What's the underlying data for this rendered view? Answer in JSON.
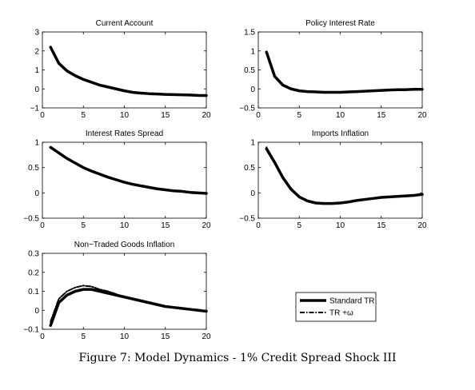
{
  "caption": "Figure 7: Model Dynamics - 1% Credit Spread Shock III",
  "legend": {
    "entries": [
      {
        "label": "Standard TR",
        "style": "solid"
      },
      {
        "label": "TR +ω",
        "style": "dashdot"
      }
    ]
  },
  "chart_data": [
    {
      "type": "line",
      "title": "Current Account",
      "xlim": [
        0,
        20
      ],
      "ylim": [
        -1,
        3
      ],
      "xticks": [
        0,
        5,
        10,
        15,
        20
      ],
      "yticks": [
        -1,
        0,
        1,
        2,
        3
      ],
      "xtick_labels": [
        "0",
        "5",
        "10",
        "15",
        "20"
      ],
      "ytick_labels": [
        "−1",
        "0",
        "1",
        "2",
        "3"
      ],
      "series": [
        {
          "style": "solid",
          "x": [
            1,
            2,
            3,
            4,
            5,
            6,
            7,
            8,
            9,
            10,
            11,
            12,
            13,
            14,
            15,
            16,
            17,
            18,
            19,
            20
          ],
          "y": [
            2.2,
            1.35,
            0.95,
            0.7,
            0.5,
            0.35,
            0.2,
            0.1,
            0.0,
            -0.1,
            -0.18,
            -0.22,
            -0.25,
            -0.27,
            -0.29,
            -0.3,
            -0.31,
            -0.32,
            -0.34,
            -0.35
          ]
        },
        {
          "style": "dashdot",
          "x": [
            1,
            2,
            3,
            4,
            5,
            6,
            7,
            8,
            9,
            10,
            11,
            12,
            13,
            14,
            15,
            16,
            17,
            18,
            19,
            20
          ],
          "y": [
            2.2,
            1.35,
            0.95,
            0.7,
            0.5,
            0.35,
            0.2,
            0.1,
            0.0,
            -0.1,
            -0.18,
            -0.22,
            -0.25,
            -0.27,
            -0.29,
            -0.3,
            -0.31,
            -0.32,
            -0.34,
            -0.35
          ]
        }
      ]
    },
    {
      "type": "line",
      "title": "Policy Interest Rate",
      "xlim": [
        0,
        20
      ],
      "ylim": [
        -0.5,
        1.5
      ],
      "xticks": [
        0,
        5,
        10,
        15,
        20
      ],
      "yticks": [
        -0.5,
        0,
        0.5,
        1,
        1.5
      ],
      "xtick_labels": [
        "0",
        "5",
        "10",
        "15",
        "20"
      ],
      "ytick_labels": [
        "−0.5",
        "0",
        "0.5",
        "1",
        "1.5"
      ],
      "series": [
        {
          "style": "solid",
          "x": [
            1,
            2,
            3,
            4,
            5,
            6,
            7,
            8,
            9,
            10,
            11,
            12,
            13,
            14,
            15,
            16,
            17,
            18,
            19,
            20
          ],
          "y": [
            0.97,
            0.33,
            0.1,
            0.0,
            -0.05,
            -0.07,
            -0.08,
            -0.09,
            -0.09,
            -0.09,
            -0.08,
            -0.07,
            -0.06,
            -0.05,
            -0.04,
            -0.03,
            -0.02,
            -0.02,
            -0.01,
            -0.01
          ]
        },
        {
          "style": "dashdot",
          "x": [
            1,
            2,
            3,
            4,
            5,
            6,
            7,
            8,
            9,
            10,
            11,
            12,
            13,
            14,
            15,
            16,
            17,
            18,
            19,
            20
          ],
          "y": [
            0.97,
            0.33,
            0.1,
            0.0,
            -0.05,
            -0.07,
            -0.08,
            -0.09,
            -0.09,
            -0.09,
            -0.08,
            -0.07,
            -0.06,
            -0.05,
            -0.04,
            -0.03,
            -0.02,
            -0.02,
            -0.01,
            -0.01
          ]
        }
      ]
    },
    {
      "type": "line",
      "title": "Interest Rates Spread",
      "xlim": [
        0,
        20
      ],
      "ylim": [
        -0.5,
        1
      ],
      "xticks": [
        0,
        5,
        10,
        15,
        20
      ],
      "yticks": [
        -0.5,
        0,
        0.5,
        1
      ],
      "xtick_labels": [
        "0",
        "5",
        "10",
        "15",
        "20"
      ],
      "ytick_labels": [
        "−0.5",
        "0",
        "0.5",
        "1"
      ],
      "series": [
        {
          "style": "solid",
          "x": [
            1,
            2,
            3,
            4,
            5,
            6,
            7,
            8,
            9,
            10,
            11,
            12,
            13,
            14,
            15,
            16,
            17,
            18,
            19,
            20
          ],
          "y": [
            0.9,
            0.79,
            0.68,
            0.59,
            0.5,
            0.43,
            0.37,
            0.31,
            0.26,
            0.21,
            0.17,
            0.14,
            0.11,
            0.08,
            0.06,
            0.04,
            0.03,
            0.01,
            0.0,
            -0.01
          ]
        },
        {
          "style": "dashdot",
          "x": [
            1,
            2,
            3,
            4,
            5,
            6,
            7,
            8,
            9,
            10,
            11,
            12,
            13,
            14,
            15,
            16,
            17,
            18,
            19,
            20
          ],
          "y": [
            0.9,
            0.79,
            0.68,
            0.59,
            0.5,
            0.43,
            0.37,
            0.31,
            0.26,
            0.21,
            0.17,
            0.14,
            0.11,
            0.08,
            0.06,
            0.04,
            0.03,
            0.01,
            0.0,
            -0.01
          ]
        }
      ]
    },
    {
      "type": "line",
      "title": "Imports Inflation",
      "xlim": [
        0,
        20
      ],
      "ylim": [
        -0.5,
        1
      ],
      "xticks": [
        0,
        5,
        10,
        15,
        20
      ],
      "yticks": [
        -0.5,
        0,
        0.5,
        1
      ],
      "xtick_labels": [
        "0",
        "5",
        "10",
        "15",
        "20"
      ],
      "ytick_labels": [
        "−0.5",
        "0",
        "0.5",
        "1"
      ],
      "series": [
        {
          "style": "solid",
          "x": [
            1,
            2,
            3,
            4,
            5,
            6,
            7,
            8,
            9,
            10,
            11,
            12,
            13,
            14,
            15,
            16,
            17,
            18,
            19,
            20
          ],
          "y": [
            0.87,
            0.6,
            0.3,
            0.07,
            -0.08,
            -0.16,
            -0.2,
            -0.21,
            -0.21,
            -0.2,
            -0.18,
            -0.15,
            -0.13,
            -0.11,
            -0.09,
            -0.08,
            -0.07,
            -0.06,
            -0.05,
            -0.03
          ]
        },
        {
          "style": "dashdot",
          "x": [
            1,
            2,
            3,
            4,
            5,
            6,
            7,
            8,
            9,
            10,
            11,
            12,
            13,
            14,
            15,
            16,
            17,
            18,
            19,
            20
          ],
          "y": [
            0.9,
            0.62,
            0.32,
            0.09,
            -0.07,
            -0.15,
            -0.19,
            -0.21,
            -0.21,
            -0.2,
            -0.18,
            -0.15,
            -0.13,
            -0.11,
            -0.09,
            -0.08,
            -0.07,
            -0.06,
            -0.05,
            -0.03
          ]
        }
      ]
    },
    {
      "type": "line",
      "title": "Non−Traded Goods Inflation",
      "xlim": [
        0,
        20
      ],
      "ylim": [
        -0.1,
        0.3
      ],
      "xticks": [
        0,
        5,
        10,
        15,
        20
      ],
      "yticks": [
        -0.1,
        0,
        0.1,
        0.2,
        0.3
      ],
      "xtick_labels": [
        "0",
        "5",
        "10",
        "15",
        "20"
      ],
      "ytick_labels": [
        "−0.1",
        "0",
        "0.1",
        "0.2",
        "0.3"
      ],
      "series": [
        {
          "style": "solid",
          "x": [
            1,
            2,
            3,
            4,
            5,
            6,
            7,
            8,
            9,
            10,
            11,
            12,
            13,
            14,
            15,
            16,
            17,
            18,
            19,
            20
          ],
          "y": [
            -0.08,
            0.04,
            0.08,
            0.1,
            0.11,
            0.11,
            0.1,
            0.09,
            0.08,
            0.07,
            0.06,
            0.05,
            0.04,
            0.03,
            0.02,
            0.015,
            0.01,
            0.005,
            0.0,
            -0.005
          ]
        },
        {
          "style": "dashdot",
          "x": [
            1,
            2,
            3,
            4,
            5,
            6,
            7,
            8,
            9,
            10,
            11,
            12,
            13,
            14,
            15,
            16,
            17,
            18,
            19,
            20
          ],
          "y": [
            -0.06,
            0.06,
            0.1,
            0.12,
            0.13,
            0.125,
            0.11,
            0.1,
            0.085,
            0.07,
            0.06,
            0.05,
            0.04,
            0.03,
            0.02,
            0.015,
            0.01,
            0.005,
            0.0,
            -0.005
          ]
        }
      ]
    }
  ]
}
